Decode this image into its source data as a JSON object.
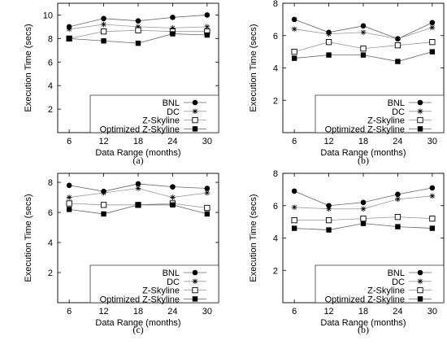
{
  "chart_data": [
    {
      "type": "line",
      "caption": "(a)",
      "xlabel": "Data Range (months)",
      "ylabel": "Execution Time (secs)",
      "x": [
        6,
        12,
        18,
        24,
        30
      ],
      "xlim": [
        4,
        32
      ],
      "ylim": [
        0,
        11
      ],
      "yticks": [
        2,
        4,
        6,
        8,
        10
      ],
      "grid": false,
      "legend": "bottom-right",
      "series": [
        {
          "name": "BNL",
          "marker": "filled-circle",
          "values": [
            9.0,
            9.7,
            9.5,
            9.8,
            10.0
          ]
        },
        {
          "name": "DC",
          "marker": "star",
          "values": [
            8.8,
            9.2,
            9.0,
            8.9,
            9.0
          ]
        },
        {
          "name": "Z-Skyline",
          "marker": "open-square",
          "values": [
            8.0,
            8.6,
            8.7,
            8.6,
            8.6
          ]
        },
        {
          "name": "Optimized Z-Skyline",
          "marker": "filled-square",
          "values": [
            8.0,
            7.8,
            7.6,
            8.4,
            8.3
          ]
        }
      ]
    },
    {
      "type": "line",
      "caption": "(b)",
      "xlabel": "Data Range (months)",
      "ylabel": "Execution Time (secs)",
      "x": [
        6,
        12,
        18,
        24,
        30
      ],
      "xlim": [
        4,
        32
      ],
      "ylim": [
        0,
        8
      ],
      "yticks": [
        2,
        4,
        6,
        8
      ],
      "grid": false,
      "legend": "bottom-right",
      "series": [
        {
          "name": "BNL",
          "marker": "filled-circle",
          "values": [
            7.0,
            6.2,
            6.6,
            5.8,
            6.8
          ]
        },
        {
          "name": "DC",
          "marker": "star",
          "values": [
            6.4,
            6.1,
            6.2,
            5.8,
            6.5
          ]
        },
        {
          "name": "Z-Skyline",
          "marker": "open-square",
          "values": [
            5.0,
            5.6,
            5.2,
            5.4,
            5.6
          ]
        },
        {
          "name": "Optimized Z-Skyline",
          "marker": "filled-square",
          "values": [
            4.6,
            4.8,
            4.8,
            4.4,
            5.0
          ]
        }
      ]
    },
    {
      "type": "line",
      "caption": "(c)",
      "xlabel": "Data Range (months)",
      "ylabel": "Execution Time (secs)",
      "x": [
        6,
        12,
        18,
        24,
        30
      ],
      "xlim": [
        4,
        32
      ],
      "ylim": [
        0,
        8.6
      ],
      "yticks": [
        2,
        4,
        6,
        8
      ],
      "grid": false,
      "legend": "bottom-right",
      "series": [
        {
          "name": "BNL",
          "marker": "filled-circle",
          "values": [
            7.8,
            7.4,
            7.9,
            7.7,
            7.6
          ]
        },
        {
          "name": "DC",
          "marker": "star",
          "values": [
            7.0,
            7.3,
            7.6,
            7.0,
            7.3
          ]
        },
        {
          "name": "Z-Skyline",
          "marker": "open-square",
          "values": [
            6.6,
            6.5,
            6.5,
            6.6,
            6.3
          ]
        },
        {
          "name": "Optimized Z-Skyline",
          "marker": "filled-square",
          "values": [
            6.2,
            5.9,
            6.5,
            6.5,
            5.9
          ]
        }
      ]
    },
    {
      "type": "line",
      "caption": "(b)",
      "xlabel": "Data Range (months)",
      "ylabel": "Execution Time (secs)",
      "x": [
        6,
        12,
        18,
        24,
        30
      ],
      "xlim": [
        4,
        32
      ],
      "ylim": [
        0,
        8
      ],
      "yticks": [
        2,
        4,
        6,
        8
      ],
      "grid": false,
      "legend": "bottom-right",
      "series": [
        {
          "name": "BNL",
          "marker": "filled-circle",
          "values": [
            6.9,
            6.0,
            6.2,
            6.7,
            7.1
          ]
        },
        {
          "name": "DC",
          "marker": "star",
          "values": [
            5.9,
            5.8,
            5.8,
            6.4,
            6.6
          ]
        },
        {
          "name": "Z-Skyline",
          "marker": "open-square",
          "values": [
            5.1,
            5.1,
            5.2,
            5.3,
            5.2
          ]
        },
        {
          "name": "Optimized Z-Skyline",
          "marker": "filled-square",
          "values": [
            4.6,
            4.5,
            4.9,
            4.7,
            4.6
          ]
        }
      ]
    }
  ]
}
